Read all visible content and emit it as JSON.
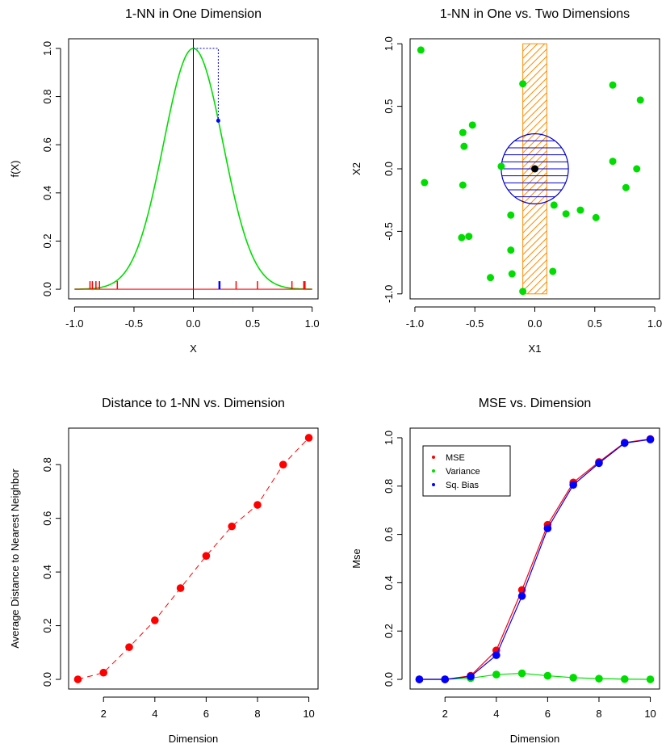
{
  "chart_data": [
    {
      "type": "line",
      "title": "1-NN in One Dimension",
      "xlabel": "X",
      "ylabel": "f(X)",
      "xlim": [
        -1.05,
        1.05
      ],
      "ylim": [
        -0.04,
        1.04
      ],
      "xticks": [
        -1.0,
        -0.5,
        0.0,
        0.5,
        1.0
      ],
      "xtick_labels": [
        "-1.0",
        "-0.5",
        "0.0",
        "0.5",
        "1.0"
      ],
      "yticks": [
        0.0,
        0.2,
        0.4,
        0.6,
        0.8,
        1.0
      ],
      "ytick_labels": [
        "0.0",
        "0.2",
        "0.4",
        "0.6",
        "0.8",
        "1.0"
      ],
      "curve": {
        "formula": "exp(-8*x^2)",
        "x_range": [
          -1,
          1
        ],
        "color": "#00dd00"
      },
      "target_point": {
        "x": 0.21,
        "y": 0.7,
        "color": "#0000ff"
      },
      "rug_x": [
        -0.87,
        -0.85,
        -0.82,
        -0.79,
        -0.64,
        0.36,
        0.54,
        0.83,
        0.93,
        0.94
      ],
      "rug_color": "#ff0000",
      "nearest_rug_x": 0.22,
      "vertical_line_x": 0.0
    },
    {
      "type": "scatter",
      "title": "1-NN in One vs. Two Dimensions",
      "xlabel": "X1",
      "ylabel": "X2",
      "xlim": [
        -1.04,
        1.04
      ],
      "ylim": [
        -1.04,
        1.04
      ],
      "xticks": [
        -1.0,
        -0.5,
        0.0,
        0.5,
        1.0
      ],
      "xtick_labels": [
        "-1.0",
        "-0.5",
        "0.0",
        "0.5",
        "1.0"
      ],
      "yticks": [
        -1.0,
        -0.5,
        0.0,
        0.5,
        1.0
      ],
      "ytick_labels": [
        "-1.0",
        "-0.5",
        "0.0",
        "0.5",
        "1.0"
      ],
      "points_x": [
        -0.95,
        -0.1,
        0.65,
        0.88,
        -0.92,
        -0.52,
        -0.6,
        -0.59,
        -0.28,
        -0.6,
        -0.2,
        0.16,
        0.26,
        0.38,
        0.51,
        0.65,
        0.76,
        0.85,
        -0.61,
        -0.55,
        -0.2,
        -0.37,
        -0.19,
        -0.1,
        0.15
      ],
      "points_y": [
        0.95,
        0.68,
        0.67,
        0.55,
        -0.11,
        0.35,
        0.29,
        0.18,
        0.02,
        -0.13,
        -0.37,
        -0.29,
        -0.36,
        -0.33,
        -0.39,
        0.06,
        -0.15,
        0.0,
        -0.55,
        -0.54,
        -0.65,
        -0.87,
        -0.84,
        -0.98,
        -0.82
      ],
      "points_color": "#00dd00",
      "target": {
        "x": 0.0,
        "y": 0.0,
        "color": "#000000"
      },
      "rect": {
        "x": [
          -0.1,
          0.1
        ],
        "y": [
          -1.0,
          1.0
        ],
        "color": "#ff8c00"
      },
      "circle": {
        "cx": 0.0,
        "cy": 0.0,
        "r": 0.28,
        "color": "#0000cc"
      }
    },
    {
      "type": "line",
      "title": "Distance to 1-NN vs. Dimension",
      "xlabel": "Dimension",
      "ylabel": "Average Distance to Nearest Neighbor",
      "xlim": [
        0.64,
        10.36
      ],
      "ylim": [
        -0.036,
        0.936
      ],
      "xticks": [
        2,
        4,
        6,
        8,
        10
      ],
      "xtick_labels": [
        "2",
        "4",
        "6",
        "8",
        "10"
      ],
      "yticks": [
        0.0,
        0.2,
        0.4,
        0.6,
        0.8
      ],
      "ytick_labels": [
        "0.0",
        "0.2",
        "0.4",
        "0.6",
        "0.8"
      ],
      "x": [
        1,
        2,
        3,
        4,
        5,
        6,
        7,
        8,
        9,
        10
      ],
      "series": [
        {
          "values": [
            0.0,
            0.025,
            0.12,
            0.22,
            0.34,
            0.46,
            0.57,
            0.65,
            0.8,
            0.9
          ],
          "color": "#ff0000"
        }
      ]
    },
    {
      "type": "line",
      "title": "MSE vs. Dimension",
      "xlabel": "Dimension",
      "ylabel": "Mse",
      "xlim": [
        0.64,
        10.36
      ],
      "ylim": [
        -0.04,
        1.04
      ],
      "xticks": [
        2,
        4,
        6,
        8,
        10
      ],
      "xtick_labels": [
        "2",
        "4",
        "6",
        "8",
        "10"
      ],
      "yticks": [
        0.0,
        0.2,
        0.4,
        0.6,
        0.8,
        1.0
      ],
      "ytick_labels": [
        "0.0",
        "0.2",
        "0.4",
        "0.6",
        "0.8",
        "1.0"
      ],
      "x": [
        1,
        2,
        3,
        4,
        5,
        6,
        7,
        8,
        9,
        10
      ],
      "legend_position": "top-left",
      "series": [
        {
          "name": "MSE",
          "values": [
            0.0,
            0.0,
            0.015,
            0.12,
            0.37,
            0.64,
            0.815,
            0.9,
            0.98,
            0.995
          ],
          "color": "#ff0000"
        },
        {
          "name": "Variance",
          "values": [
            0.0,
            0.0,
            0.005,
            0.02,
            0.025,
            0.015,
            0.007,
            0.003,
            0.001,
            0.0
          ],
          "color": "#00dd00"
        },
        {
          "name": "Sq. Bias",
          "values": [
            0.0,
            0.0,
            0.012,
            0.1,
            0.345,
            0.625,
            0.805,
            0.895,
            0.978,
            0.993
          ],
          "color": "#0000ff"
        }
      ]
    }
  ]
}
